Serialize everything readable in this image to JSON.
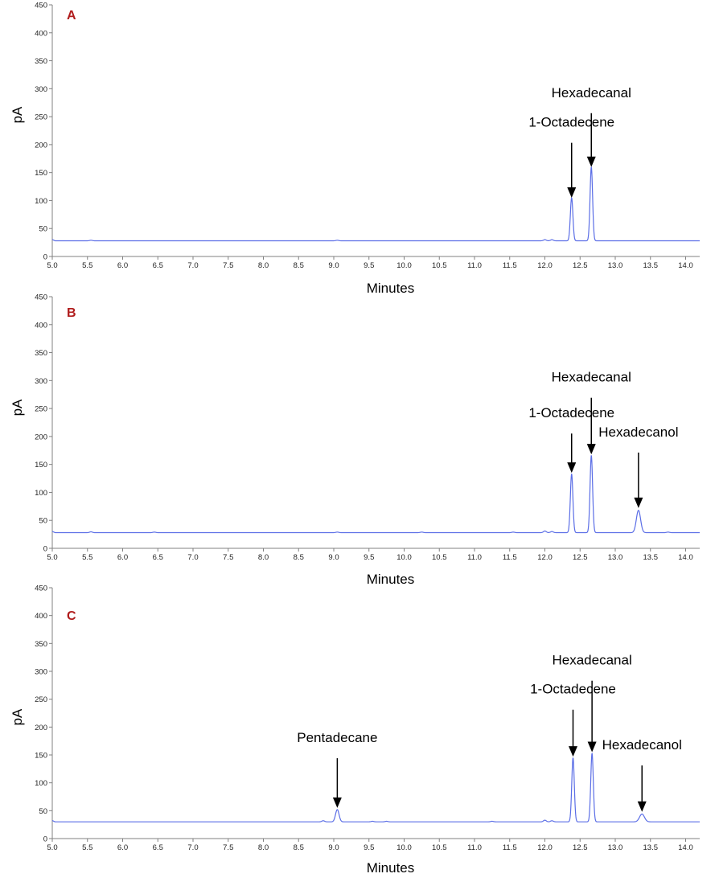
{
  "colors": {
    "trace": "#5b6ee6",
    "panel_label": "#b01c1c",
    "axis": "#808080",
    "arrow": "#000000"
  },
  "chart_data": [
    {
      "type": "line",
      "panel_label": "A",
      "xlabel": "Minutes",
      "ylabel": "pA",
      "xlim": [
        5.0,
        14.2
      ],
      "ylim": [
        0,
        450
      ],
      "x_ticks": [
        "5.0",
        "5.5",
        "6.0",
        "6.5",
        "7.0",
        "7.5",
        "8.0",
        "8.5",
        "9.0",
        "9.5",
        "10.0",
        "10.5",
        "11.0",
        "11.5",
        "12.0",
        "12.5",
        "13.0",
        "13.5",
        "14.0"
      ],
      "y_ticks": [
        "0",
        "50",
        "100",
        "150",
        "200",
        "250",
        "300",
        "350",
        "400",
        "450"
      ],
      "baseline": 28,
      "series": [
        {
          "peaks": [
            {
              "x": 5.55,
              "height": 1,
              "width": 0.02
            },
            {
              "x": 9.05,
              "height": 1,
              "width": 0.02
            },
            {
              "x": 12.0,
              "height": 2,
              "width": 0.02
            },
            {
              "x": 12.1,
              "height": 2,
              "width": 0.02
            },
            {
              "x": 12.38,
              "height": 77,
              "width": 0.018
            },
            {
              "x": 12.66,
              "height": 132,
              "width": 0.018
            }
          ]
        }
      ],
      "annotations": [
        {
          "text": "Hexadecanal",
          "x": 12.66,
          "y": 160,
          "label_y": 285
        },
        {
          "text": "1-Octadecene",
          "x": 12.38,
          "y": 105,
          "label_y": 232
        }
      ]
    },
    {
      "type": "line",
      "panel_label": "B",
      "xlabel": "Minutes",
      "ylabel": "pA",
      "xlim": [
        5.0,
        14.2
      ],
      "ylim": [
        0,
        450
      ],
      "x_ticks": [
        "5.0",
        "5.5",
        "6.0",
        "6.5",
        "7.0",
        "7.5",
        "8.0",
        "8.5",
        "9.0",
        "9.5",
        "10.0",
        "10.5",
        "11.0",
        "11.5",
        "12.0",
        "12.5",
        "13.0",
        "13.5",
        "14.0"
      ],
      "y_ticks": [
        "0",
        "50",
        "100",
        "150",
        "200",
        "250",
        "300",
        "350",
        "400",
        "450"
      ],
      "baseline": 28,
      "series": [
        {
          "peaks": [
            {
              "x": 5.55,
              "height": 1.5,
              "width": 0.02
            },
            {
              "x": 6.45,
              "height": 1,
              "width": 0.02
            },
            {
              "x": 9.05,
              "height": 1,
              "width": 0.02
            },
            {
              "x": 10.25,
              "height": 1,
              "width": 0.02
            },
            {
              "x": 11.55,
              "height": 1,
              "width": 0.02
            },
            {
              "x": 12.0,
              "height": 3,
              "width": 0.02
            },
            {
              "x": 12.1,
              "height": 2,
              "width": 0.02
            },
            {
              "x": 12.38,
              "height": 105,
              "width": 0.018
            },
            {
              "x": 12.66,
              "height": 138,
              "width": 0.018
            },
            {
              "x": 13.33,
              "height": 40,
              "width": 0.03
            },
            {
              "x": 13.75,
              "height": 1,
              "width": 0.02
            }
          ]
        }
      ],
      "annotations": [
        {
          "text": "Hexadecanal",
          "x": 12.66,
          "y": 168,
          "label_y": 298
        },
        {
          "text": "1-Octadecene",
          "x": 12.38,
          "y": 135,
          "label_y": 234
        },
        {
          "text": "Hexadecanol",
          "x": 13.33,
          "y": 72,
          "label_y": 200
        }
      ]
    },
    {
      "type": "line",
      "panel_label": "C",
      "xlabel": "Minutes",
      "ylabel": "pA",
      "xlim": [
        5.0,
        14.2
      ],
      "ylim": [
        0,
        450
      ],
      "x_ticks": [
        "5.0",
        "5.5",
        "6.0",
        "6.5",
        "7.0",
        "7.5",
        "8.0",
        "8.5",
        "9.0",
        "9.5",
        "10.0",
        "10.5",
        "11.0",
        "11.5",
        "12.0",
        "12.5",
        "13.0",
        "13.5",
        "14.0"
      ],
      "y_ticks": [
        "0",
        "50",
        "100",
        "150",
        "200",
        "250",
        "300",
        "350",
        "400",
        "450"
      ],
      "baseline": 30,
      "series": [
        {
          "peaks": [
            {
              "x": 8.85,
              "height": 2,
              "width": 0.02
            },
            {
              "x": 9.05,
              "height": 22,
              "width": 0.025
            },
            {
              "x": 9.55,
              "height": 1,
              "width": 0.02
            },
            {
              "x": 9.75,
              "height": 1,
              "width": 0.02
            },
            {
              "x": 11.25,
              "height": 1,
              "width": 0.02
            },
            {
              "x": 12.0,
              "height": 3,
              "width": 0.02
            },
            {
              "x": 12.1,
              "height": 2,
              "width": 0.02
            },
            {
              "x": 12.4,
              "height": 115,
              "width": 0.018
            },
            {
              "x": 12.67,
              "height": 123,
              "width": 0.018
            },
            {
              "x": 13.38,
              "height": 14,
              "width": 0.035
            }
          ]
        }
      ],
      "annotations": [
        {
          "text": "Hexadecanal",
          "x": 12.67,
          "y": 155,
          "label_y": 312
        },
        {
          "text": "1-Octadecene",
          "x": 12.4,
          "y": 147,
          "label_y": 260
        },
        {
          "text": "Hexadecanol",
          "x": 13.38,
          "y": 48,
          "label_y": 160
        },
        {
          "text": "Pentadecane",
          "x": 9.05,
          "y": 55,
          "label_y": 173
        }
      ]
    }
  ]
}
